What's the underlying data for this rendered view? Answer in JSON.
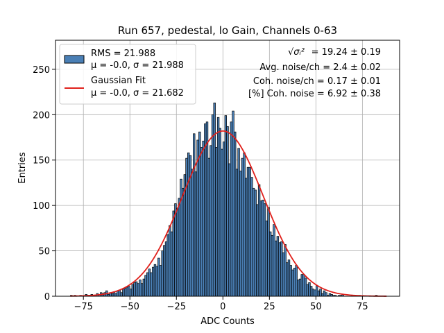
{
  "chart_data": {
    "type": "bar",
    "title": "Run 657, pedestal, lo Gain, Channels 0-63",
    "xlabel": "ADC Counts",
    "ylabel": "Entries",
    "xlim": [
      -90,
      95
    ],
    "ylim": [
      0,
      282
    ],
    "xticks": [
      -75,
      -50,
      -25,
      0,
      25,
      50,
      75
    ],
    "yticks": [
      0,
      50,
      100,
      150,
      200,
      250
    ],
    "grid": true,
    "legend": {
      "placement": "top-left",
      "entries": [
        {
          "line1": "RMS = 21.988",
          "line2": "μ = -0.0, σ = 21.988",
          "kind": "patch",
          "color": "#4a7fb5"
        },
        {
          "line1": "Gaussian Fit",
          "line2": "μ = -0.0, σ = 21.682",
          "kind": "line",
          "color": "#e0201b"
        }
      ]
    },
    "annotations": {
      "placement": "top-right",
      "line1_symbol": "√σᵢ²",
      "line1_value": "= 19.24 ± 0.19",
      "line2": "Avg. noise/ch = 2.4 ± 0.02",
      "line3": "Coh. noise/ch = 0.17 ± 0.01",
      "line4": "[%] Coh. noise = 6.92 ± 0.38"
    },
    "histogram": {
      "name": "RMS = 21.988",
      "color": "#4a7fb5",
      "edge_color": "#000000",
      "x_start": -82,
      "bin_width": 1,
      "counts": [
        1,
        0,
        1,
        0,
        0,
        1,
        0,
        0,
        2,
        1,
        1,
        2,
        0,
        1,
        3,
        2,
        4,
        3,
        4,
        6,
        2,
        4,
        3,
        5,
        3,
        6,
        7,
        4,
        8,
        9,
        10,
        11,
        8,
        13,
        15,
        16,
        14,
        18,
        14,
        19,
        23,
        26,
        30,
        26,
        32,
        35,
        33,
        42,
        34,
        50,
        56,
        60,
        68,
        78,
        71,
        94,
        102,
        97,
        108,
        129,
        119,
        134,
        152,
        158,
        155,
        140,
        179,
        137,
        172,
        181,
        164,
        171,
        190,
        192,
        152,
        166,
        200,
        213,
        164,
        197,
        185,
        162,
        170,
        199,
        187,
        146,
        192,
        204,
        181,
        140,
        163,
        138,
        152,
        158,
        130,
        142,
        142,
        131,
        119,
        117,
        101,
        123,
        105,
        106,
        102,
        83,
        98,
        71,
        67,
        79,
        61,
        66,
        59,
        60,
        48,
        57,
        37,
        40,
        34,
        29,
        31,
        34,
        18,
        19,
        24,
        24,
        20,
        13,
        15,
        11,
        8,
        7,
        12,
        6,
        8,
        3,
        6,
        4,
        1,
        3,
        2,
        1,
        1,
        0,
        1,
        1,
        2,
        0,
        0,
        0,
        0,
        1,
        0,
        0,
        0,
        1,
        0,
        0,
        0,
        0,
        0,
        0,
        0,
        0,
        1,
        0,
        0,
        0,
        0,
        0,
        0,
        0,
        0
      ]
    },
    "fit": {
      "name": "Gaussian Fit",
      "color": "#e0201b",
      "mu": 0.0,
      "sigma": 21.682,
      "amplitude": 182,
      "x_range": [
        -82,
        88
      ]
    }
  }
}
